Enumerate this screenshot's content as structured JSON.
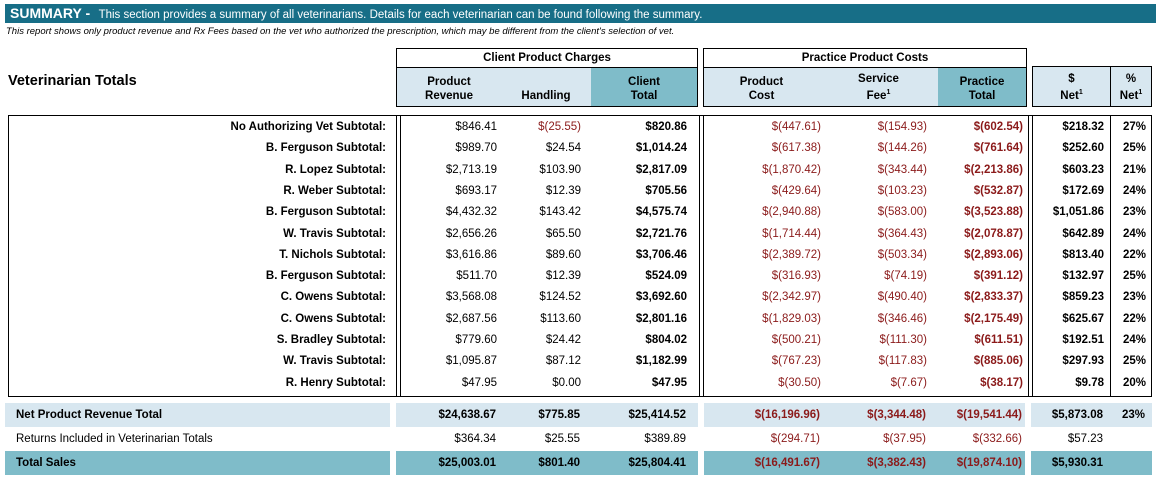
{
  "banner": {
    "title": "SUMMARY -",
    "description": "This section provides a summary of all veterinarians. Details for each veterinarian can be found following the summary."
  },
  "note": "This report shows only product revenue and Rx Fees based on the vet who authorized the prescription, which may be different from the client's selection of vet.",
  "section_title": "Veterinarian Totals",
  "groups": {
    "client": "Client Product Charges",
    "practice": "Practice Product Costs"
  },
  "columns": {
    "product_revenue": [
      "Product",
      "Revenue"
    ],
    "handling": [
      "Handling"
    ],
    "client_total": [
      "Client",
      "Total"
    ],
    "product_cost": [
      "Product",
      "Cost"
    ],
    "service_fee": [
      "Service",
      "Fee"
    ],
    "practice_total": [
      "Practice",
      "Total"
    ],
    "net_dollar": [
      "$",
      "Net"
    ],
    "net_pct": [
      "%",
      "Net"
    ],
    "footnote_mark": "1"
  },
  "rows": [
    {
      "label": "No Authorizing Vet Subtotal:",
      "revenue": "$846.41",
      "handling": "$(25.55)",
      "client_total": "$820.86",
      "cost": "$(447.61)",
      "fee": "$(154.93)",
      "practice_total": "$(602.54)",
      "net": "$218.32",
      "pct": "27%"
    },
    {
      "label": "B. Ferguson Subtotal:",
      "revenue": "$989.70",
      "handling": "$24.54",
      "client_total": "$1,014.24",
      "cost": "$(617.38)",
      "fee": "$(144.26)",
      "practice_total": "$(761.64)",
      "net": "$252.60",
      "pct": "25%"
    },
    {
      "label": "R. Lopez Subtotal:",
      "revenue": "$2,713.19",
      "handling": "$103.90",
      "client_total": "$2,817.09",
      "cost": "$(1,870.42)",
      "fee": "$(343.44)",
      "practice_total": "$(2,213.86)",
      "net": "$603.23",
      "pct": "21%"
    },
    {
      "label": "R. Weber Subtotal:",
      "revenue": "$693.17",
      "handling": "$12.39",
      "client_total": "$705.56",
      "cost": "$(429.64)",
      "fee": "$(103.23)",
      "practice_total": "$(532.87)",
      "net": "$172.69",
      "pct": "24%"
    },
    {
      "label": "B. Ferguson Subtotal:",
      "revenue": "$4,432.32",
      "handling": "$143.42",
      "client_total": "$4,575.74",
      "cost": "$(2,940.88)",
      "fee": "$(583.00)",
      "practice_total": "$(3,523.88)",
      "net": "$1,051.86",
      "pct": "23%"
    },
    {
      "label": "W. Travis Subtotal:",
      "revenue": "$2,656.26",
      "handling": "$65.50",
      "client_total": "$2,721.76",
      "cost": "$(1,714.44)",
      "fee": "$(364.43)",
      "practice_total": "$(2,078.87)",
      "net": "$642.89",
      "pct": "24%"
    },
    {
      "label": "T. Nichols Subtotal:",
      "revenue": "$3,616.86",
      "handling": "$89.60",
      "client_total": "$3,706.46",
      "cost": "$(2,389.72)",
      "fee": "$(503.34)",
      "practice_total": "$(2,893.06)",
      "net": "$813.40",
      "pct": "22%"
    },
    {
      "label": "B. Ferguson Subtotal:",
      "revenue": "$511.70",
      "handling": "$12.39",
      "client_total": "$524.09",
      "cost": "$(316.93)",
      "fee": "$(74.19)",
      "practice_total": "$(391.12)",
      "net": "$132.97",
      "pct": "25%"
    },
    {
      "label": "C. Owens Subtotal:",
      "revenue": "$3,568.08",
      "handling": "$124.52",
      "client_total": "$3,692.60",
      "cost": "$(2,342.97)",
      "fee": "$(490.40)",
      "practice_total": "$(2,833.37)",
      "net": "$859.23",
      "pct": "23%"
    },
    {
      "label": "C. Owens Subtotal:",
      "revenue": "$2,687.56",
      "handling": "$113.60",
      "client_total": "$2,801.16",
      "cost": "$(1,829.03)",
      "fee": "$(346.46)",
      "practice_total": "$(2,175.49)",
      "net": "$625.67",
      "pct": "22%"
    },
    {
      "label": "S. Bradley Subtotal:",
      "revenue": "$779.60",
      "handling": "$24.42",
      "client_total": "$804.02",
      "cost": "$(500.21)",
      "fee": "$(111.30)",
      "practice_total": "$(611.51)",
      "net": "$192.51",
      "pct": "24%"
    },
    {
      "label": "W. Travis Subtotal:",
      "revenue": "$1,095.87",
      "handling": "$87.12",
      "client_total": "$1,182.99",
      "cost": "$(767.23)",
      "fee": "$(117.83)",
      "practice_total": "$(885.06)",
      "net": "$297.93",
      "pct": "25%"
    },
    {
      "label": "R. Henry Subtotal:",
      "revenue": "$47.95",
      "handling": "$0.00",
      "client_total": "$47.95",
      "cost": "$(30.50)",
      "fee": "$(7.67)",
      "practice_total": "$(38.17)",
      "net": "$9.78",
      "pct": "20%"
    }
  ],
  "totals": {
    "net_product": {
      "label": "Net Product Revenue Total",
      "revenue": "$24,638.67",
      "handling": "$775.85",
      "client_total": "$25,414.52",
      "cost": "$(16,196.96)",
      "fee": "$(3,344.48)",
      "practice_total": "$(19,541.44)",
      "net": "$5,873.08",
      "pct": "23%"
    },
    "returns": {
      "label": "Returns Included in Veterinarian Totals",
      "revenue": "$364.34",
      "handling": "$25.55",
      "client_total": "$389.89",
      "cost": "$(294.71)",
      "fee": "$(37.95)",
      "practice_total": "$(332.66)",
      "net": "$57.23",
      "pct": ""
    },
    "total_sales": {
      "label": "Total Sales",
      "revenue": "$25,003.01",
      "handling": "$801.40",
      "client_total": "$25,804.41",
      "cost": "$(16,491.67)",
      "fee": "$(3,382.43)",
      "practice_total": "$(19,874.10)",
      "net": "$5,930.31",
      "pct": ""
    }
  },
  "colors": {
    "banner": "#176e87",
    "header_light": "#d8e7f0",
    "header_dark": "#7fbcc9",
    "negative": "#8b1a1a"
  }
}
